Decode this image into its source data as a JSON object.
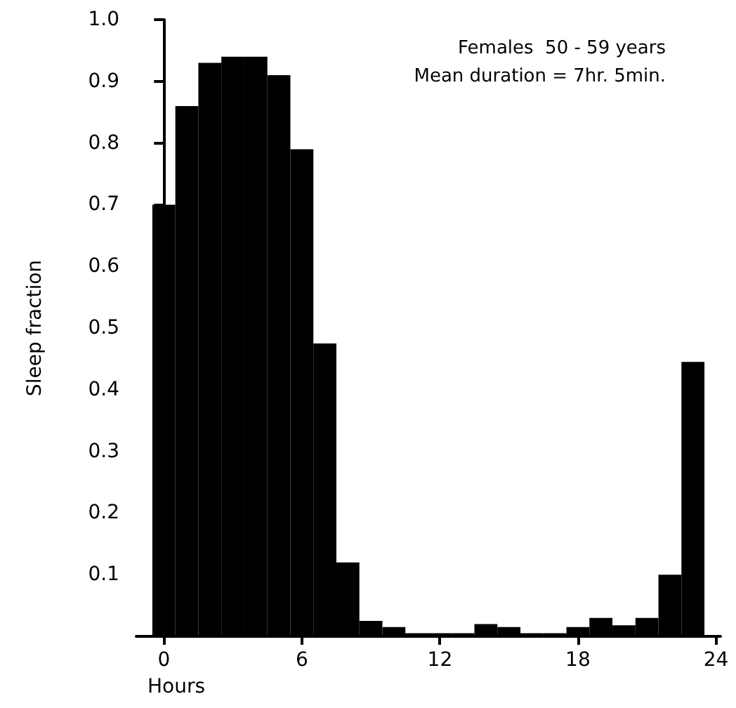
{
  "chart_data": {
    "type": "histogram",
    "xlabel": "Hours",
    "ylabel": "Sleep fraction",
    "annotations": [
      "Females  50 - 59 years",
      "Mean duration = 7hr. 5min."
    ],
    "bins": [
      -0.5,
      0.5,
      1.5,
      2.5,
      3.5,
      4.5,
      5.5,
      6.5,
      7.5,
      8.5,
      9.5,
      10.5,
      11.5,
      12.5,
      13.5,
      14.5,
      15.5,
      16.5,
      17.5,
      18.5,
      19.5,
      20.5,
      21.5,
      22.5,
      23.5
    ],
    "values": [
      0.7,
      0.86,
      0.93,
      0.94,
      0.94,
      0.91,
      0.79,
      0.475,
      0.12,
      0.025,
      0.015,
      0.005,
      0.005,
      0.005,
      0.02,
      0.015,
      0.005,
      0.005,
      0.015,
      0.03,
      0.018,
      0.03,
      0.1,
      0.445
    ],
    "color": "#000000",
    "xlim": [
      -1.2,
      24.2
    ],
    "xticks": [
      0,
      6,
      12,
      18,
      24
    ],
    "ylim": [
      0,
      1
    ],
    "yticks": [
      0.1,
      0.2,
      0.3,
      0.4,
      0.5,
      0.6,
      0.7,
      0.8,
      0.9,
      {
        "value": 1,
        "label": "1.0"
      }
    ],
    "grid": false
  }
}
